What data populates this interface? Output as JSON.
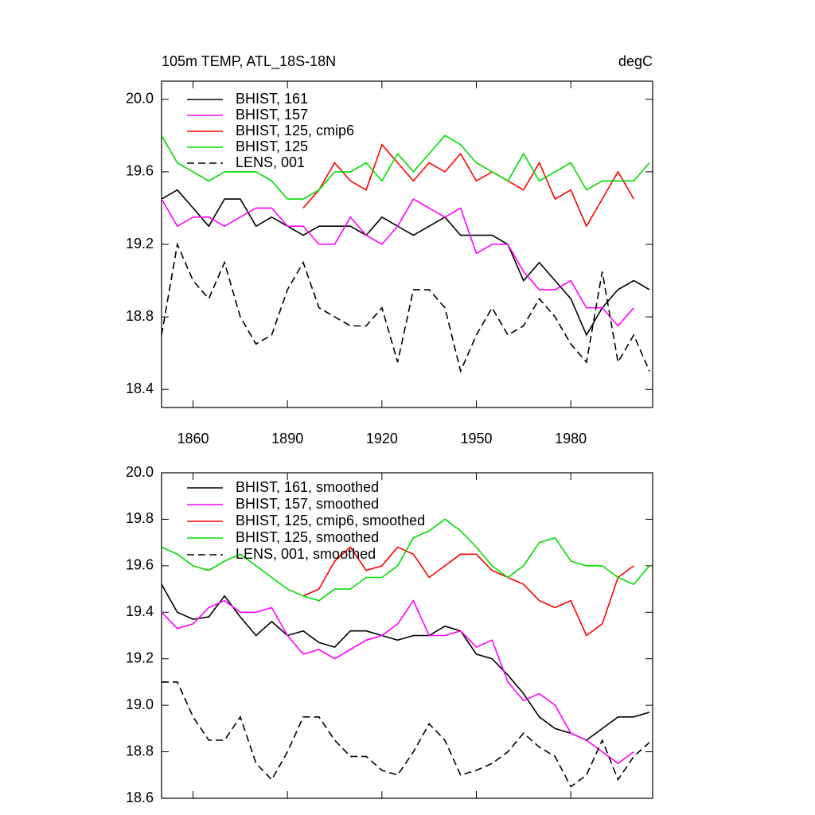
{
  "chart_data": [
    {
      "type": "line",
      "title": "105m TEMP, ATL_18S-18N",
      "subtitle": "degC",
      "x": [
        1850,
        1855,
        1860,
        1865,
        1870,
        1875,
        1880,
        1885,
        1890,
        1895,
        1900,
        1905,
        1910,
        1915,
        1920,
        1925,
        1930,
        1935,
        1940,
        1945,
        1950,
        1955,
        1960,
        1965,
        1970,
        1975,
        1980,
        1985,
        1990,
        1995,
        2000,
        2005
      ],
      "xlim": [
        1850,
        2006
      ],
      "xticks": [
        1860,
        1890,
        1920,
        1950,
        1980
      ],
      "ylim": [
        18.3,
        20.1
      ],
      "yticks": [
        18.4,
        18.8,
        19.2,
        19.6,
        {
          "value": 20,
          "label": "20.0"
        }
      ],
      "series": [
        {
          "name": "BHIST, 161",
          "color": "#000000",
          "dash": false,
          "values": [
            19.45,
            19.5,
            19.4,
            19.3,
            19.45,
            19.45,
            19.3,
            19.35,
            19.3,
            19.25,
            19.3,
            19.3,
            19.3,
            19.25,
            19.35,
            19.3,
            19.25,
            19.3,
            19.35,
            19.25,
            19.25,
            19.25,
            19.2,
            19.0,
            19.1,
            19.0,
            18.9,
            18.7,
            18.85,
            18.95,
            19.0,
            18.95
          ]
        },
        {
          "name": "BHIST, 157",
          "color": "#ff00ff",
          "dash": false,
          "values": [
            19.45,
            19.3,
            19.35,
            19.35,
            19.3,
            19.35,
            19.4,
            19.4,
            19.3,
            19.3,
            19.2,
            19.2,
            19.35,
            19.25,
            19.2,
            19.3,
            19.45,
            19.4,
            19.35,
            19.4,
            19.15,
            19.2,
            19.2,
            19.05,
            18.95,
            18.95,
            19.0,
            18.85,
            18.85,
            18.75,
            18.85,
            null
          ]
        },
        {
          "name": "BHIST, 125, cmip6",
          "color": "#ff0000",
          "dash": false,
          "values": [
            null,
            null,
            null,
            null,
            null,
            null,
            null,
            null,
            null,
            19.4,
            19.5,
            19.65,
            19.55,
            19.5,
            19.75,
            19.65,
            19.55,
            19.65,
            19.6,
            19.7,
            19.55,
            19.6,
            19.55,
            19.5,
            19.65,
            19.45,
            19.5,
            19.3,
            19.45,
            19.6,
            19.45,
            null
          ]
        },
        {
          "name": "BHIST, 125",
          "color": "#00dd00",
          "dash": false,
          "values": [
            19.8,
            19.65,
            19.6,
            19.55,
            19.6,
            19.6,
            19.6,
            19.55,
            19.45,
            19.45,
            19.5,
            19.6,
            19.6,
            19.65,
            19.55,
            19.7,
            19.6,
            19.7,
            19.8,
            19.75,
            19.65,
            19.6,
            19.55,
            19.7,
            19.55,
            19.6,
            19.65,
            19.5,
            19.55,
            19.55,
            19.55,
            19.65
          ]
        },
        {
          "name": "LENS, 001",
          "color": "#000000",
          "dash": true,
          "values": [
            18.7,
            19.2,
            19.0,
            18.9,
            19.1,
            18.8,
            18.65,
            18.7,
            18.95,
            19.1,
            18.85,
            18.8,
            18.75,
            18.75,
            18.85,
            18.55,
            18.95,
            18.95,
            18.85,
            18.5,
            18.7,
            18.85,
            18.7,
            18.75,
            18.9,
            18.8,
            18.65,
            18.55,
            19.05,
            18.55,
            18.7,
            18.5
          ]
        }
      ]
    },
    {
      "type": "line",
      "x": [
        1850,
        1855,
        1860,
        1865,
        1870,
        1875,
        1880,
        1885,
        1890,
        1895,
        1900,
        1905,
        1910,
        1915,
        1920,
        1925,
        1930,
        1935,
        1940,
        1945,
        1950,
        1955,
        1960,
        1965,
        1970,
        1975,
        1980,
        1985,
        1990,
        1995,
        2000,
        2005
      ],
      "xlim": [
        1850,
        2006
      ],
      "ylim": [
        18.6,
        20.0
      ],
      "yticks": [
        18.6,
        18.8,
        {
          "value": 19,
          "label": "19.0"
        },
        19.2,
        19.4,
        19.6,
        19.8,
        {
          "value": 20,
          "label": "20.0"
        }
      ],
      "series": [
        {
          "name": "BHIST, 161, smoothed",
          "color": "#000000",
          "dash": false,
          "values": [
            19.52,
            19.4,
            19.37,
            19.38,
            19.47,
            19.38,
            19.3,
            19.36,
            19.3,
            19.32,
            19.27,
            19.25,
            19.32,
            19.32,
            19.3,
            19.28,
            19.3,
            19.3,
            19.34,
            19.32,
            19.22,
            19.2,
            19.13,
            19.05,
            18.95,
            18.9,
            18.88,
            18.85,
            18.9,
            18.95,
            18.95,
            18.97
          ]
        },
        {
          "name": "BHIST, 157, smoothed",
          "color": "#ff00ff",
          "dash": false,
          "values": [
            19.4,
            19.33,
            19.35,
            19.42,
            19.45,
            19.4,
            19.4,
            19.42,
            19.3,
            19.22,
            19.24,
            19.2,
            19.24,
            19.28,
            19.3,
            19.35,
            19.45,
            19.3,
            19.3,
            19.32,
            19.25,
            19.28,
            19.1,
            19.02,
            19.05,
            19.0,
            18.88,
            18.85,
            18.8,
            18.75,
            18.8,
            null
          ]
        },
        {
          "name": "BHIST, 125, cmip6, smoothed",
          "color": "#ff0000",
          "dash": false,
          "values": [
            null,
            null,
            null,
            null,
            null,
            null,
            null,
            null,
            null,
            19.47,
            19.5,
            19.62,
            19.68,
            19.58,
            19.6,
            19.68,
            19.65,
            19.55,
            19.6,
            19.65,
            19.65,
            19.58,
            19.55,
            19.52,
            19.45,
            19.42,
            19.45,
            19.3,
            19.35,
            19.55,
            19.6,
            null
          ]
        },
        {
          "name": "BHIST, 125, smoothed",
          "color": "#00dd00",
          "dash": false,
          "values": [
            19.68,
            19.65,
            19.6,
            19.58,
            19.62,
            19.65,
            19.6,
            19.55,
            19.5,
            19.47,
            19.45,
            19.5,
            19.5,
            19.55,
            19.55,
            19.6,
            19.72,
            19.75,
            19.8,
            19.75,
            19.68,
            19.6,
            19.55,
            19.6,
            19.7,
            19.72,
            19.62,
            19.6,
            19.6,
            19.55,
            19.52,
            19.6
          ]
        },
        {
          "name": "LENS, 001, smoothed",
          "color": "#000000",
          "dash": true,
          "values": [
            19.1,
            19.1,
            18.95,
            18.85,
            18.85,
            18.95,
            18.75,
            18.68,
            18.8,
            18.95,
            18.95,
            18.85,
            18.78,
            18.78,
            18.72,
            18.7,
            18.8,
            18.92,
            18.85,
            18.7,
            18.72,
            18.75,
            18.8,
            18.88,
            18.82,
            18.78,
            18.65,
            18.7,
            18.85,
            18.68,
            18.78,
            18.84
          ]
        }
      ]
    }
  ]
}
